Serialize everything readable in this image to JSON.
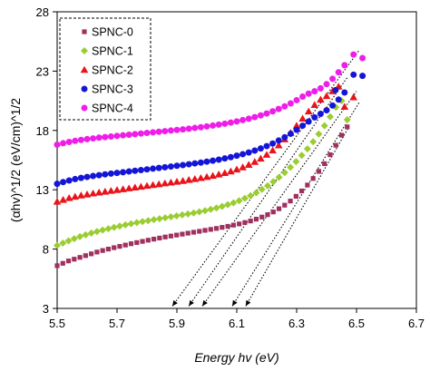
{
  "chart_data": {
    "type": "scatter",
    "xlabel": "Energy hv (eV)",
    "ylabel": "(αhv)^1/2 (eV/cm)^1/2",
    "xlim": [
      5.5,
      6.7
    ],
    "ylim": [
      3,
      28
    ],
    "x_ticks": [
      "5.5",
      "5.7",
      "5.9",
      "6.1",
      "6.3",
      "6.5",
      "6.7"
    ],
    "y_ticks": [
      "3",
      "8",
      "13",
      "18",
      "23",
      "28"
    ],
    "grid": false,
    "legend_position": "top-left",
    "series": [
      {
        "name": "SPNC-0",
        "marker": "square",
        "color": "#a0305f",
        "points": [
          [
            5.5,
            6.6
          ],
          [
            5.519,
            6.8
          ],
          [
            5.538,
            7.0
          ],
          [
            5.557,
            7.15
          ],
          [
            5.576,
            7.3
          ],
          [
            5.595,
            7.45
          ],
          [
            5.614,
            7.6
          ],
          [
            5.633,
            7.75
          ],
          [
            5.652,
            7.88
          ],
          [
            5.671,
            8.0
          ],
          [
            5.69,
            8.12
          ],
          [
            5.709,
            8.23
          ],
          [
            5.728,
            8.34
          ],
          [
            5.747,
            8.45
          ],
          [
            5.766,
            8.55
          ],
          [
            5.785,
            8.65
          ],
          [
            5.804,
            8.75
          ],
          [
            5.823,
            8.84
          ],
          [
            5.842,
            8.93
          ],
          [
            5.861,
            9.02
          ],
          [
            5.88,
            9.1
          ],
          [
            5.899,
            9.18
          ],
          [
            5.918,
            9.26
          ],
          [
            5.937,
            9.34
          ],
          [
            5.956,
            9.42
          ],
          [
            5.975,
            9.5
          ],
          [
            5.994,
            9.58
          ],
          [
            6.013,
            9.66
          ],
          [
            6.032,
            9.74
          ],
          [
            6.051,
            9.83
          ],
          [
            6.07,
            9.92
          ],
          [
            6.089,
            10.02
          ],
          [
            6.108,
            10.12
          ],
          [
            6.127,
            10.24
          ],
          [
            6.146,
            10.37
          ],
          [
            6.165,
            10.52
          ],
          [
            6.184,
            10.7
          ],
          [
            6.203,
            10.9
          ],
          [
            6.222,
            11.13
          ],
          [
            6.241,
            11.4
          ],
          [
            6.26,
            11.7
          ],
          [
            6.279,
            12.05
          ],
          [
            6.298,
            12.45
          ],
          [
            6.317,
            12.9
          ],
          [
            6.336,
            13.4
          ],
          [
            6.355,
            13.95
          ],
          [
            6.374,
            14.55
          ],
          [
            6.393,
            15.2
          ],
          [
            6.412,
            15.95
          ],
          [
            6.431,
            16.75
          ],
          [
            6.45,
            17.6
          ],
          [
            6.469,
            18.3
          ]
        ]
      },
      {
        "name": "SPNC-1",
        "marker": "diamond",
        "color": "#9acd32",
        "points": [
          [
            5.5,
            8.3
          ],
          [
            5.519,
            8.5
          ],
          [
            5.538,
            8.7
          ],
          [
            5.557,
            8.88
          ],
          [
            5.576,
            9.05
          ],
          [
            5.595,
            9.2
          ],
          [
            5.614,
            9.35
          ],
          [
            5.633,
            9.48
          ],
          [
            5.652,
            9.6
          ],
          [
            5.671,
            9.72
          ],
          [
            5.69,
            9.83
          ],
          [
            5.709,
            9.94
          ],
          [
            5.728,
            10.04
          ],
          [
            5.747,
            10.14
          ],
          [
            5.766,
            10.23
          ],
          [
            5.785,
            10.32
          ],
          [
            5.804,
            10.4
          ],
          [
            5.823,
            10.48
          ],
          [
            5.842,
            10.56
          ],
          [
            5.861,
            10.64
          ],
          [
            5.88,
            10.72
          ],
          [
            5.899,
            10.8
          ],
          [
            5.918,
            10.88
          ],
          [
            5.937,
            10.96
          ],
          [
            5.956,
            11.05
          ],
          [
            5.975,
            11.14
          ],
          [
            5.994,
            11.24
          ],
          [
            6.013,
            11.35
          ],
          [
            6.032,
            11.47
          ],
          [
            6.051,
            11.6
          ],
          [
            6.07,
            11.74
          ],
          [
            6.089,
            11.9
          ],
          [
            6.108,
            12.08
          ],
          [
            6.127,
            12.28
          ],
          [
            6.146,
            12.5
          ],
          [
            6.165,
            12.75
          ],
          [
            6.184,
            13.03
          ],
          [
            6.203,
            13.33
          ],
          [
            6.222,
            13.67
          ],
          [
            6.241,
            14.05
          ],
          [
            6.26,
            14.45
          ],
          [
            6.279,
            14.9
          ],
          [
            6.298,
            15.38
          ],
          [
            6.317,
            15.9
          ],
          [
            6.336,
            16.45
          ],
          [
            6.355,
            17.05
          ],
          [
            6.374,
            17.7
          ],
          [
            6.393,
            18.4
          ],
          [
            6.412,
            19.15
          ],
          [
            6.431,
            19.95
          ],
          [
            6.45,
            20.5
          ],
          [
            6.469,
            18.9
          ]
        ]
      },
      {
        "name": "SPNC-2",
        "marker": "triangle",
        "color": "#e8141a",
        "points": [
          [
            5.5,
            12.0
          ],
          [
            5.52,
            12.15
          ],
          [
            5.54,
            12.3
          ],
          [
            5.56,
            12.42
          ],
          [
            5.58,
            12.52
          ],
          [
            5.6,
            12.61
          ],
          [
            5.62,
            12.69
          ],
          [
            5.64,
            12.77
          ],
          [
            5.66,
            12.84
          ],
          [
            5.68,
            12.91
          ],
          [
            5.7,
            12.98
          ],
          [
            5.72,
            13.05
          ],
          [
            5.74,
            13.12
          ],
          [
            5.76,
            13.19
          ],
          [
            5.78,
            13.26
          ],
          [
            5.8,
            13.33
          ],
          [
            5.82,
            13.4
          ],
          [
            5.84,
            13.47
          ],
          [
            5.86,
            13.54
          ],
          [
            5.88,
            13.61
          ],
          [
            5.9,
            13.68
          ],
          [
            5.92,
            13.75
          ],
          [
            5.94,
            13.83
          ],
          [
            5.96,
            13.91
          ],
          [
            5.98,
            13.99
          ],
          [
            6.0,
            14.08
          ],
          [
            6.02,
            14.18
          ],
          [
            6.04,
            14.29
          ],
          [
            6.06,
            14.41
          ],
          [
            6.08,
            14.55
          ],
          [
            6.1,
            14.71
          ],
          [
            6.12,
            14.89
          ],
          [
            6.14,
            15.1
          ],
          [
            6.16,
            15.35
          ],
          [
            6.18,
            15.63
          ],
          [
            6.2,
            15.95
          ],
          [
            6.22,
            16.32
          ],
          [
            6.24,
            16.75
          ],
          [
            6.26,
            17.25
          ],
          [
            6.28,
            17.8
          ],
          [
            6.3,
            18.4
          ],
          [
            6.32,
            19.0
          ],
          [
            6.34,
            19.6
          ],
          [
            6.36,
            20.15
          ],
          [
            6.38,
            20.6
          ],
          [
            6.4,
            20.9
          ],
          [
            6.42,
            21.3
          ],
          [
            6.44,
            21.7
          ],
          [
            6.46,
            20.0
          ],
          [
            6.49,
            20.8
          ]
        ]
      },
      {
        "name": "SPNC-3",
        "marker": "circle",
        "color": "#1515d8",
        "points": [
          [
            5.5,
            13.5
          ],
          [
            5.52,
            13.65
          ],
          [
            5.54,
            13.78
          ],
          [
            5.56,
            13.9
          ],
          [
            5.58,
            14.0
          ],
          [
            5.6,
            14.08
          ],
          [
            5.62,
            14.16
          ],
          [
            5.64,
            14.23
          ],
          [
            5.66,
            14.3
          ],
          [
            5.68,
            14.36
          ],
          [
            5.7,
            14.42
          ],
          [
            5.72,
            14.48
          ],
          [
            5.74,
            14.54
          ],
          [
            5.76,
            14.6
          ],
          [
            5.78,
            14.66
          ],
          [
            5.8,
            14.72
          ],
          [
            5.82,
            14.78
          ],
          [
            5.84,
            14.84
          ],
          [
            5.86,
            14.9
          ],
          [
            5.88,
            14.96
          ],
          [
            5.9,
            15.02
          ],
          [
            5.92,
            15.08
          ],
          [
            5.94,
            15.15
          ],
          [
            5.96,
            15.22
          ],
          [
            5.98,
            15.29
          ],
          [
            6.0,
            15.37
          ],
          [
            6.02,
            15.45
          ],
          [
            6.04,
            15.54
          ],
          [
            6.06,
            15.64
          ],
          [
            6.08,
            15.75
          ],
          [
            6.1,
            15.87
          ],
          [
            6.12,
            16.0
          ],
          [
            6.14,
            16.14
          ],
          [
            6.16,
            16.3
          ],
          [
            6.18,
            16.48
          ],
          [
            6.2,
            16.68
          ],
          [
            6.22,
            16.9
          ],
          [
            6.24,
            17.15
          ],
          [
            6.26,
            17.42
          ],
          [
            6.28,
            17.72
          ],
          [
            6.3,
            18.05
          ],
          [
            6.32,
            18.4
          ],
          [
            6.34,
            18.75
          ],
          [
            6.36,
            19.1
          ],
          [
            6.38,
            19.4
          ],
          [
            6.4,
            19.7
          ],
          [
            6.42,
            20.1
          ],
          [
            6.44,
            20.6
          ],
          [
            6.46,
            21.2
          ],
          [
            6.49,
            22.7
          ],
          [
            6.52,
            22.6
          ],
          [
            6.43,
            21.4
          ]
        ]
      },
      {
        "name": "SPNC-4",
        "marker": "circle",
        "color": "#ee1ee8",
        "points": [
          [
            5.5,
            16.8
          ],
          [
            5.52,
            16.92
          ],
          [
            5.54,
            17.03
          ],
          [
            5.56,
            17.12
          ],
          [
            5.58,
            17.2
          ],
          [
            5.6,
            17.27
          ],
          [
            5.62,
            17.33
          ],
          [
            5.64,
            17.39
          ],
          [
            5.66,
            17.44
          ],
          [
            5.68,
            17.49
          ],
          [
            5.7,
            17.54
          ],
          [
            5.72,
            17.59
          ],
          [
            5.74,
            17.64
          ],
          [
            5.76,
            17.69
          ],
          [
            5.78,
            17.74
          ],
          [
            5.8,
            17.79
          ],
          [
            5.82,
            17.84
          ],
          [
            5.84,
            17.89
          ],
          [
            5.86,
            17.94
          ],
          [
            5.88,
            17.99
          ],
          [
            5.9,
            18.04
          ],
          [
            5.92,
            18.09
          ],
          [
            5.94,
            18.15
          ],
          [
            5.96,
            18.21
          ],
          [
            5.98,
            18.27
          ],
          [
            6.0,
            18.34
          ],
          [
            6.02,
            18.41
          ],
          [
            6.04,
            18.49
          ],
          [
            6.06,
            18.57
          ],
          [
            6.08,
            18.66
          ],
          [
            6.1,
            18.76
          ],
          [
            6.12,
            18.87
          ],
          [
            6.14,
            18.99
          ],
          [
            6.16,
            19.12
          ],
          [
            6.18,
            19.27
          ],
          [
            6.2,
            19.43
          ],
          [
            6.22,
            19.61
          ],
          [
            6.24,
            19.81
          ],
          [
            6.26,
            20.03
          ],
          [
            6.28,
            20.28
          ],
          [
            6.3,
            20.55
          ],
          [
            6.32,
            20.85
          ],
          [
            6.34,
            21.1
          ],
          [
            6.36,
            21.3
          ],
          [
            6.38,
            21.55
          ],
          [
            6.4,
            21.9
          ],
          [
            6.42,
            22.35
          ],
          [
            6.44,
            22.9
          ],
          [
            6.46,
            23.5
          ],
          [
            6.49,
            24.4
          ],
          [
            6.52,
            24.1
          ]
        ]
      }
    ],
    "tangent_lines": [
      {
        "from": [
          5.885,
          3.2
        ],
        "to": [
          6.51,
          24.8
        ]
      },
      {
        "from": [
          5.94,
          3.2
        ],
        "to": [
          6.47,
          22.5
        ]
      },
      {
        "from": [
          5.985,
          3.2
        ],
        "to": [
          6.5,
          21.3
        ]
      },
      {
        "from": [
          6.085,
          3.2
        ],
        "to": [
          6.51,
          20.4
        ]
      },
      {
        "from": [
          6.13,
          3.2
        ],
        "to": [
          6.47,
          18.1
        ]
      }
    ]
  }
}
